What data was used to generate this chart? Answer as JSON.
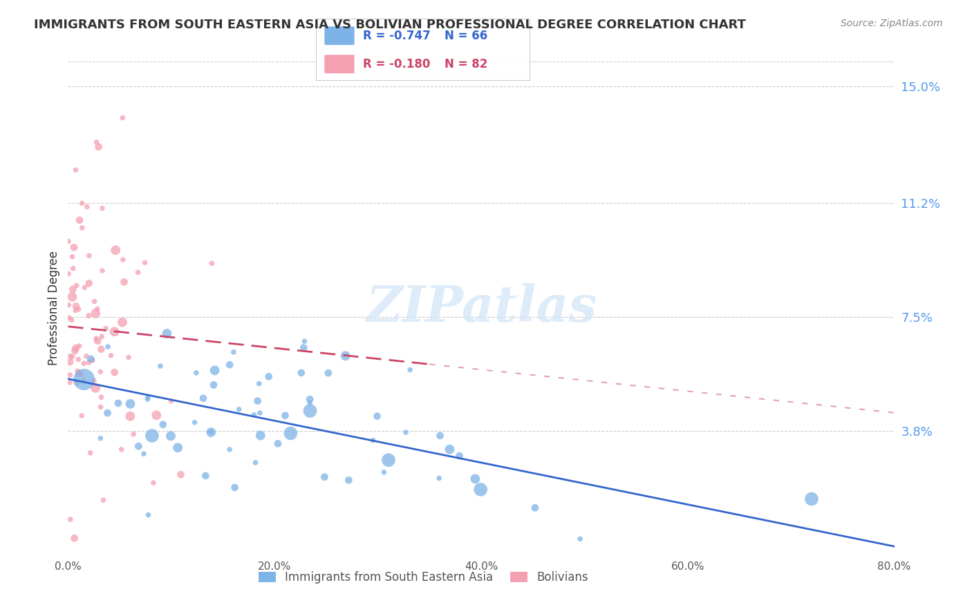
{
  "title": "IMMIGRANTS FROM SOUTH EASTERN ASIA VS BOLIVIAN PROFESSIONAL DEGREE CORRELATION CHART",
  "source": "Source: ZipAtlas.com",
  "xlabel": "",
  "ylabel": "Professional Degree",
  "right_ytick_labels": [
    "15.0%",
    "11.2%",
    "7.5%",
    "3.8%"
  ],
  "right_ytick_values": [
    0.15,
    0.112,
    0.075,
    0.038
  ],
  "xlim": [
    0.0,
    0.8
  ],
  "ylim": [
    -0.002,
    0.158
  ],
  "xtick_labels": [
    "0.0%",
    "20.0%",
    "40.0%",
    "60.0%",
    "80.0%"
  ],
  "xtick_values": [
    0.0,
    0.2,
    0.4,
    0.6,
    0.8
  ],
  "blue_color": "#7EB3E8",
  "pink_color": "#F4A0B0",
  "blue_line_color": "#3366CC",
  "pink_line_color": "#CC4466",
  "legend_blue_R": "R = -0.747",
  "legend_blue_N": "N = 66",
  "legend_pink_R": "R = -0.180",
  "legend_pink_N": "N = 82",
  "watermark": "ZIPatlas",
  "blue_R": -0.747,
  "blue_N": 66,
  "pink_R": -0.18,
  "pink_N": 82,
  "blue_intercept": 0.055,
  "blue_slope": -0.068,
  "pink_intercept": 0.072,
  "pink_slope": -0.035,
  "grid_color": "#cccccc",
  "background_color": "#ffffff",
  "title_color": "#333333",
  "axis_label_color": "#333333",
  "right_label_color": "#5599ee"
}
